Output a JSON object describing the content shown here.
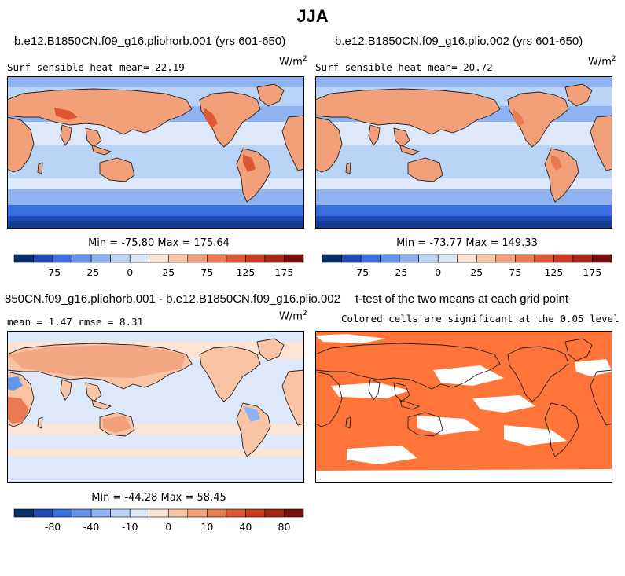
{
  "figure": {
    "title": "JJA"
  },
  "panels": [
    {
      "id": "p1",
      "case_title": "b.e12.B1850CN.f09_g16.pliohorb.001 (yrs 601-650)",
      "left_label": "Surf sensible heat   mean=  22.19",
      "units": "W/m",
      "units_exp": "2",
      "stats": "Min = -75.80 Max = 175.64",
      "colorbar_ticks": [
        "-75",
        "-25",
        "0",
        "25",
        "75",
        "125",
        "175"
      ],
      "colors": [
        "#08306b",
        "#1f4bb8",
        "#3a6fe0",
        "#6495ed",
        "#8fb3f2",
        "#b9d3f6",
        "#dde9fa",
        "#fde3d3",
        "#f8c4a4",
        "#f2a07a",
        "#ea7a52",
        "#df5632",
        "#c93a1f",
        "#a52612",
        "#7a0e0a"
      ]
    },
    {
      "id": "p2",
      "case_title": "b.e12.B1850CN.f09_g16.plio.002 (yrs 601-650)",
      "left_label": "Surf sensible heat   mean=  20.72",
      "units": "W/m",
      "units_exp": "2",
      "stats": "Min = -73.77 Max = 149.33",
      "colorbar_ticks": [
        "-75",
        "-25",
        "0",
        "25",
        "75",
        "125",
        "175"
      ]
    },
    {
      "id": "p3",
      "case_title": "850CN.f09_g16.pliohorb.001 - b.e12.B1850CN.f09_g16.plio.002",
      "left_label": "mean =   1.47     rmse =   8.31",
      "units": "W/m",
      "units_exp": "2",
      "stats": "Min = -44.28 Max = 58.45",
      "colorbar_ticks": [
        "-80",
        "-40",
        "-10",
        "0",
        "10",
        "40",
        "80"
      ]
    },
    {
      "id": "p4",
      "case_title": "t-test of the two means at each grid point",
      "left_label": "Colored cells are significant at the 0.05 level",
      "significant_color": "#ff7539"
    }
  ]
}
